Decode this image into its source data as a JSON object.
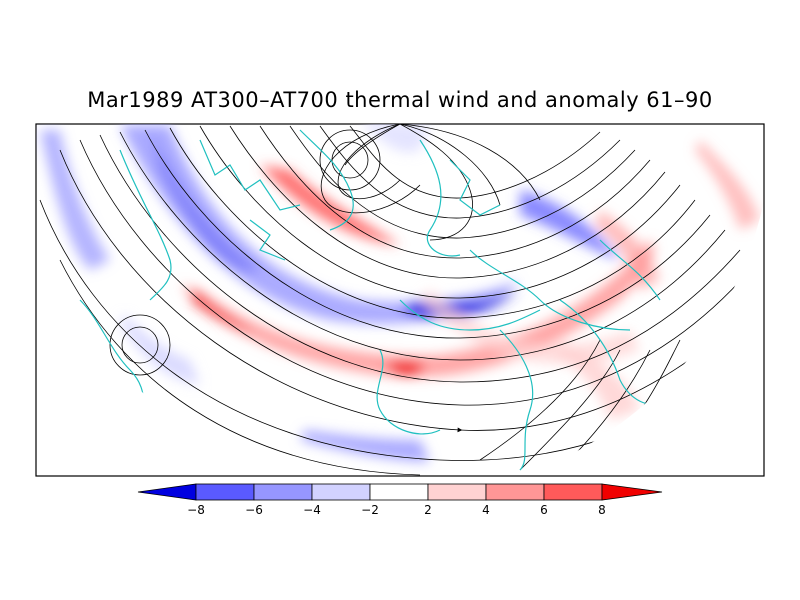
{
  "title": "Mar1989 AT300–AT700 thermal wind and anomaly 61–90",
  "map": {
    "projection": "north-polar-stereographic",
    "field": "thermal wind streamlines with temperature-gradient anomaly shading",
    "coastline_color": "#20c0c0",
    "streamline_color": "#000000"
  },
  "colorbar": {
    "tick_labels": [
      "−8",
      "−6",
      "−4",
      "−2",
      "2",
      "4",
      "6",
      "8"
    ],
    "colors": [
      "#0000e0",
      "#5a5aff",
      "#9696ff",
      "#d2d2ff",
      "#ffffff",
      "#ffd2d2",
      "#ff9696",
      "#ff5a5a",
      "#f00000"
    ]
  }
}
